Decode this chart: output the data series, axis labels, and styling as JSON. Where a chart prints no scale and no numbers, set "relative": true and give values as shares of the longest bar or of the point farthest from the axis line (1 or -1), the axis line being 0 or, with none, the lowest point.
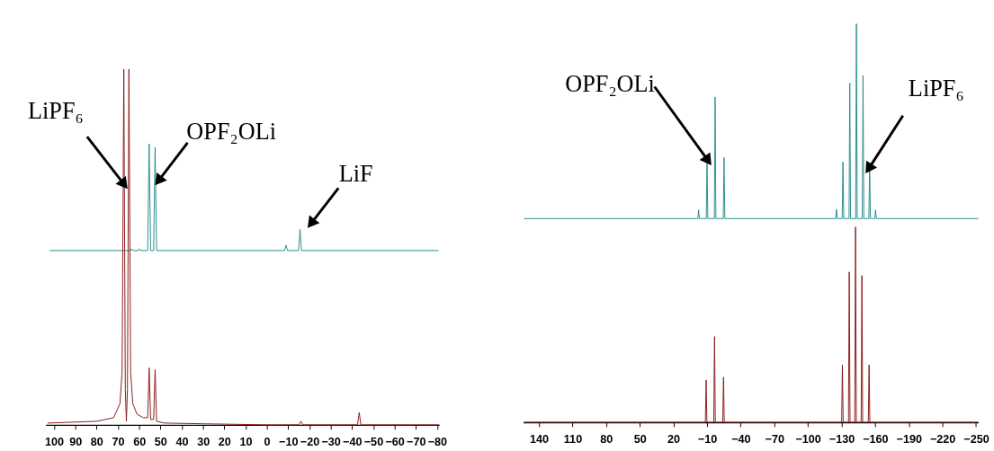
{
  "chart_data": [
    {
      "type": "line",
      "relative": true,
      "xlim": [
        104,
        -81
      ],
      "xticks": [
        100,
        90,
        80,
        70,
        60,
        50,
        40,
        30,
        20,
        10,
        0,
        -10,
        -20,
        -30,
        -40,
        -50,
        -60,
        -70,
        -80
      ],
      "series": [
        {
          "color": "#2a8c8c",
          "x": [
            102,
            64,
            63.5,
            63,
            60.5,
            60,
            59.5,
            56,
            55.3,
            54.6,
            53.2,
            52.5,
            51.8,
            -8.3,
            -9,
            -9.7,
            -14.9,
            -15.6,
            -16.3,
            -80.7
          ],
          "values": [
            0.49,
            0.49,
            0.495,
            0.49,
            0.49,
            0.495,
            0.49,
            0.49,
            0.79,
            0.49,
            0.49,
            0.78,
            0.49,
            0.49,
            0.505,
            0.49,
            0.49,
            0.55,
            0.49,
            0.49
          ]
        },
        {
          "color": "#8b1a1a",
          "x": [
            103,
            80,
            72,
            69,
            68,
            67.2,
            66.5,
            66,
            65.5,
            64.8,
            64,
            63,
            61,
            58,
            56,
            55.3,
            54.6,
            53.2,
            52.5,
            51.8,
            48,
            30,
            0,
            -15,
            -16,
            -17,
            -42.6,
            -43.4,
            -44.2,
            -70,
            -80.7
          ],
          "values": [
            0.005,
            0.01,
            0.02,
            0.06,
            0.15,
            1.0,
            0.1,
            0.01,
            0.1,
            1.0,
            0.15,
            0.06,
            0.03,
            0.02,
            0.02,
            0.16,
            0.015,
            0.015,
            0.155,
            0.01,
            0.005,
            0.003,
            0,
            0,
            0.01,
            0,
            0,
            0.035,
            0,
            0,
            0
          ]
        }
      ],
      "annotations": [
        {
          "text": "LiPF₆",
          "x": 67.6,
          "y": 0.68
        },
        {
          "text": "OPF₂OLi",
          "x": 50.4,
          "y": 0.69
        },
        {
          "text": "LiF",
          "x": -21.3,
          "y": 0.57
        }
      ]
    },
    {
      "type": "line",
      "relative": true,
      "xlim": [
        154,
        -252
      ],
      "xticks": [
        140,
        110,
        80,
        50,
        20,
        -10,
        -40,
        -70,
        -100,
        -130,
        -160,
        -190,
        -220,
        -250
      ],
      "series": [
        {
          "color": "#2a8c8c",
          "x": [
            153.5,
            -1.8,
            -2.5,
            -3.2,
            -9.3,
            -10,
            -10.7,
            -16.5,
            -17.2,
            -17.9,
            -24.5,
            -25.2,
            -25.9,
            -124.8,
            -125.5,
            -126.2,
            -130.6,
            -131.3,
            -132,
            -136.7,
            -137.4,
            -138.1,
            -142.6,
            -143.3,
            -144,
            -148.5,
            -149.2,
            -149.9,
            -154.4,
            -155.1,
            -155.8,
            -159.7,
            -160.4,
            -161.1,
            -252
          ],
          "values": [
            0.511,
            0.511,
            0.533,
            0.511,
            0.511,
            0.657,
            0.511,
            0.511,
            0.816,
            0.511,
            0.511,
            0.664,
            0.511,
            0.511,
            0.534,
            0.511,
            0.511,
            0.653,
            0.511,
            0.511,
            0.851,
            0.511,
            0.511,
            1.0,
            0.511,
            0.511,
            0.87,
            0.511,
            0.511,
            0.651,
            0.511,
            0.511,
            0.533,
            0.511,
            0.511
          ]
        },
        {
          "color": "#8b1a1a",
          "x": [
            153.5,
            -8.5,
            -9.2,
            -9.9,
            -16,
            -16.7,
            -17.4,
            -24,
            -24.7,
            -25.4,
            -130.1,
            -130.8,
            -131.5,
            -136.2,
            -136.9,
            -137.6,
            -141.8,
            -142.5,
            -143.2,
            -147.5,
            -148.2,
            -148.9,
            -153.9,
            -154.6,
            -155.3,
            -252
          ],
          "values": [
            0,
            0,
            0.106,
            0,
            0,
            0.215,
            0,
            0,
            0.113,
            0,
            0,
            0.144,
            0,
            0,
            0.377,
            0,
            0,
            0.49,
            0,
            0,
            0.368,
            0,
            0,
            0.144,
            0,
            0
          ]
        }
      ],
      "annotations": [
        {
          "text": "OPF₂OLi",
          "x": -10,
          "y": 0.66
        },
        {
          "text": "LiPF₆",
          "x": -155.1,
          "y": 0.64
        }
      ]
    }
  ]
}
